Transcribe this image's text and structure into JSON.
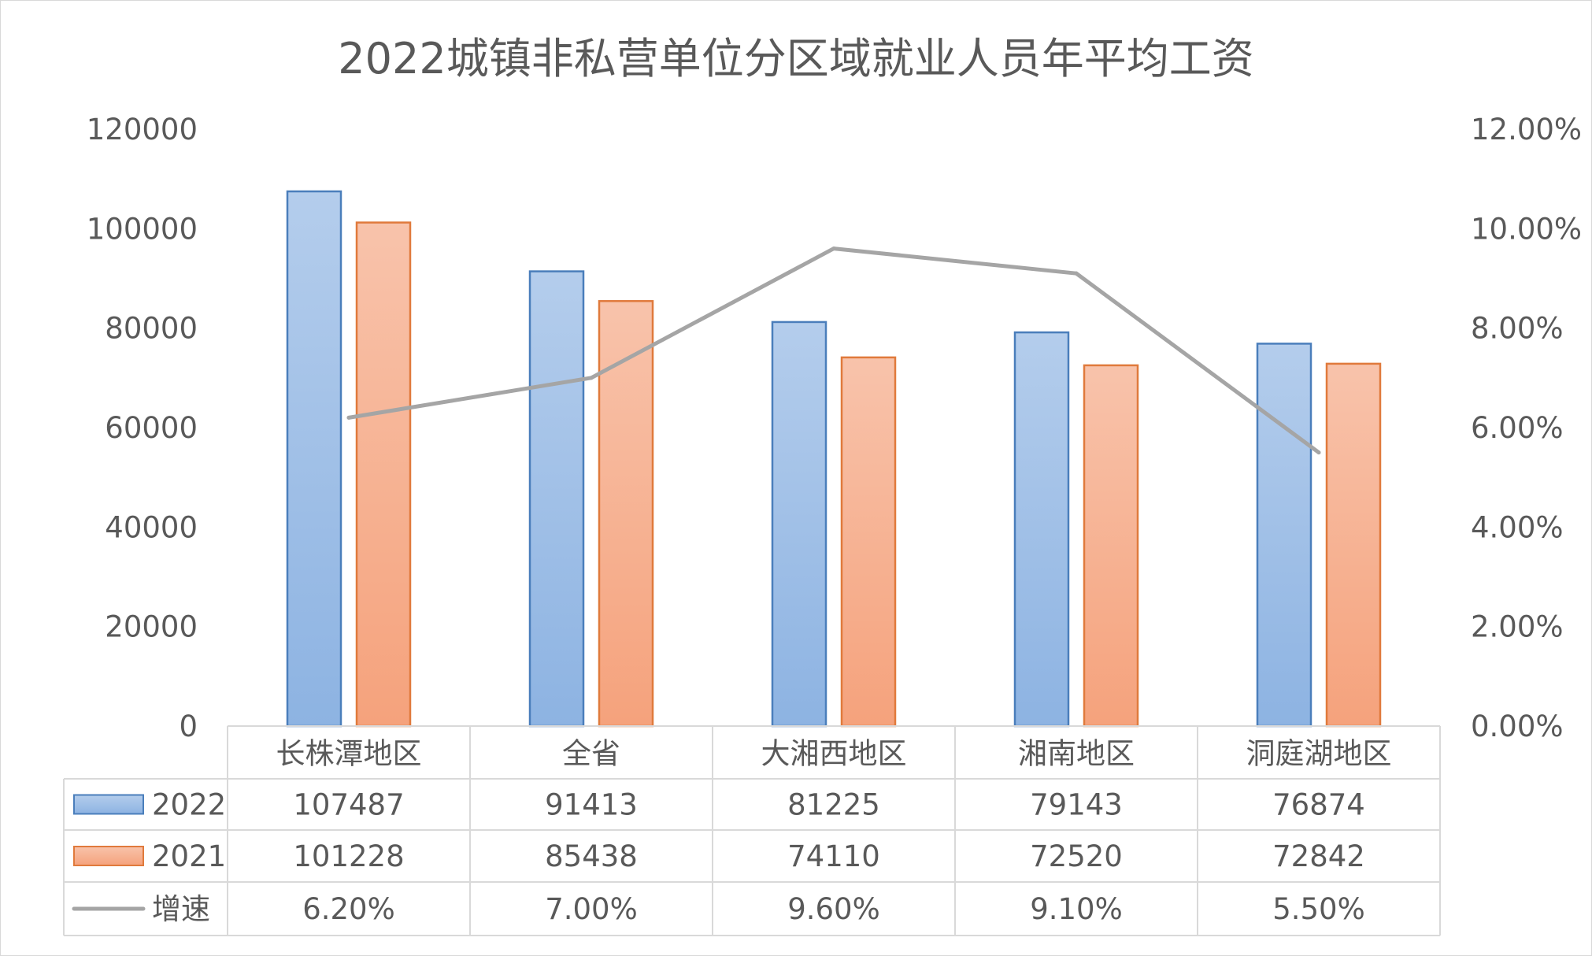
{
  "chart_data": {
    "type": "bar",
    "title": "2022城镇非私营单位分区域就业人员年平均工资",
    "categories": [
      "长株潭地区",
      "全省",
      "大湘西地区",
      "湘南地区",
      "洞庭湖地区"
    ],
    "series": [
      {
        "name": "2022",
        "type": "bar",
        "axis": "left",
        "values": [
          107487,
          91413,
          81225,
          79143,
          76874
        ],
        "color": "#8fb4e3",
        "display": [
          "107487",
          "91413",
          "81225",
          "79143",
          "76874"
        ]
      },
      {
        "name": "2021",
        "type": "bar",
        "axis": "left",
        "values": [
          101228,
          85438,
          74110,
          72520,
          72842
        ],
        "color": "#f5a27c",
        "display": [
          "101228",
          "85438",
          "74110",
          "72520",
          "72842"
        ]
      },
      {
        "name": "增速",
        "type": "line",
        "axis": "right",
        "values": [
          0.062,
          0.07,
          0.096,
          0.091,
          0.055
        ],
        "color": "#a5a5a5",
        "display": [
          "6.20%",
          "7.00%",
          "9.60%",
          "9.10%",
          "5.50%"
        ]
      }
    ],
    "y_left": {
      "min": 0,
      "max": 120000,
      "ticks": [
        "0",
        "20000",
        "40000",
        "60000",
        "80000",
        "100000",
        "120000"
      ]
    },
    "y_right": {
      "min": 0,
      "max": 0.12,
      "ticks": [
        "0.00%",
        "2.00%",
        "4.00%",
        "6.00%",
        "8.00%",
        "10.00%",
        "12.00%"
      ]
    },
    "grid": false,
    "legend": "data-table"
  },
  "colors": {
    "bar2022_top": "#b4cdec",
    "bar2022_bottom": "#8db3e2",
    "bar2022_stroke": "#4a7ebb",
    "bar2021_top": "#f8c3ab",
    "bar2021_bottom": "#f5a27c",
    "bar2021_stroke": "#e07a3c",
    "line": "#a5a5a5",
    "text": "#595959",
    "border": "#d9d9d9"
  }
}
